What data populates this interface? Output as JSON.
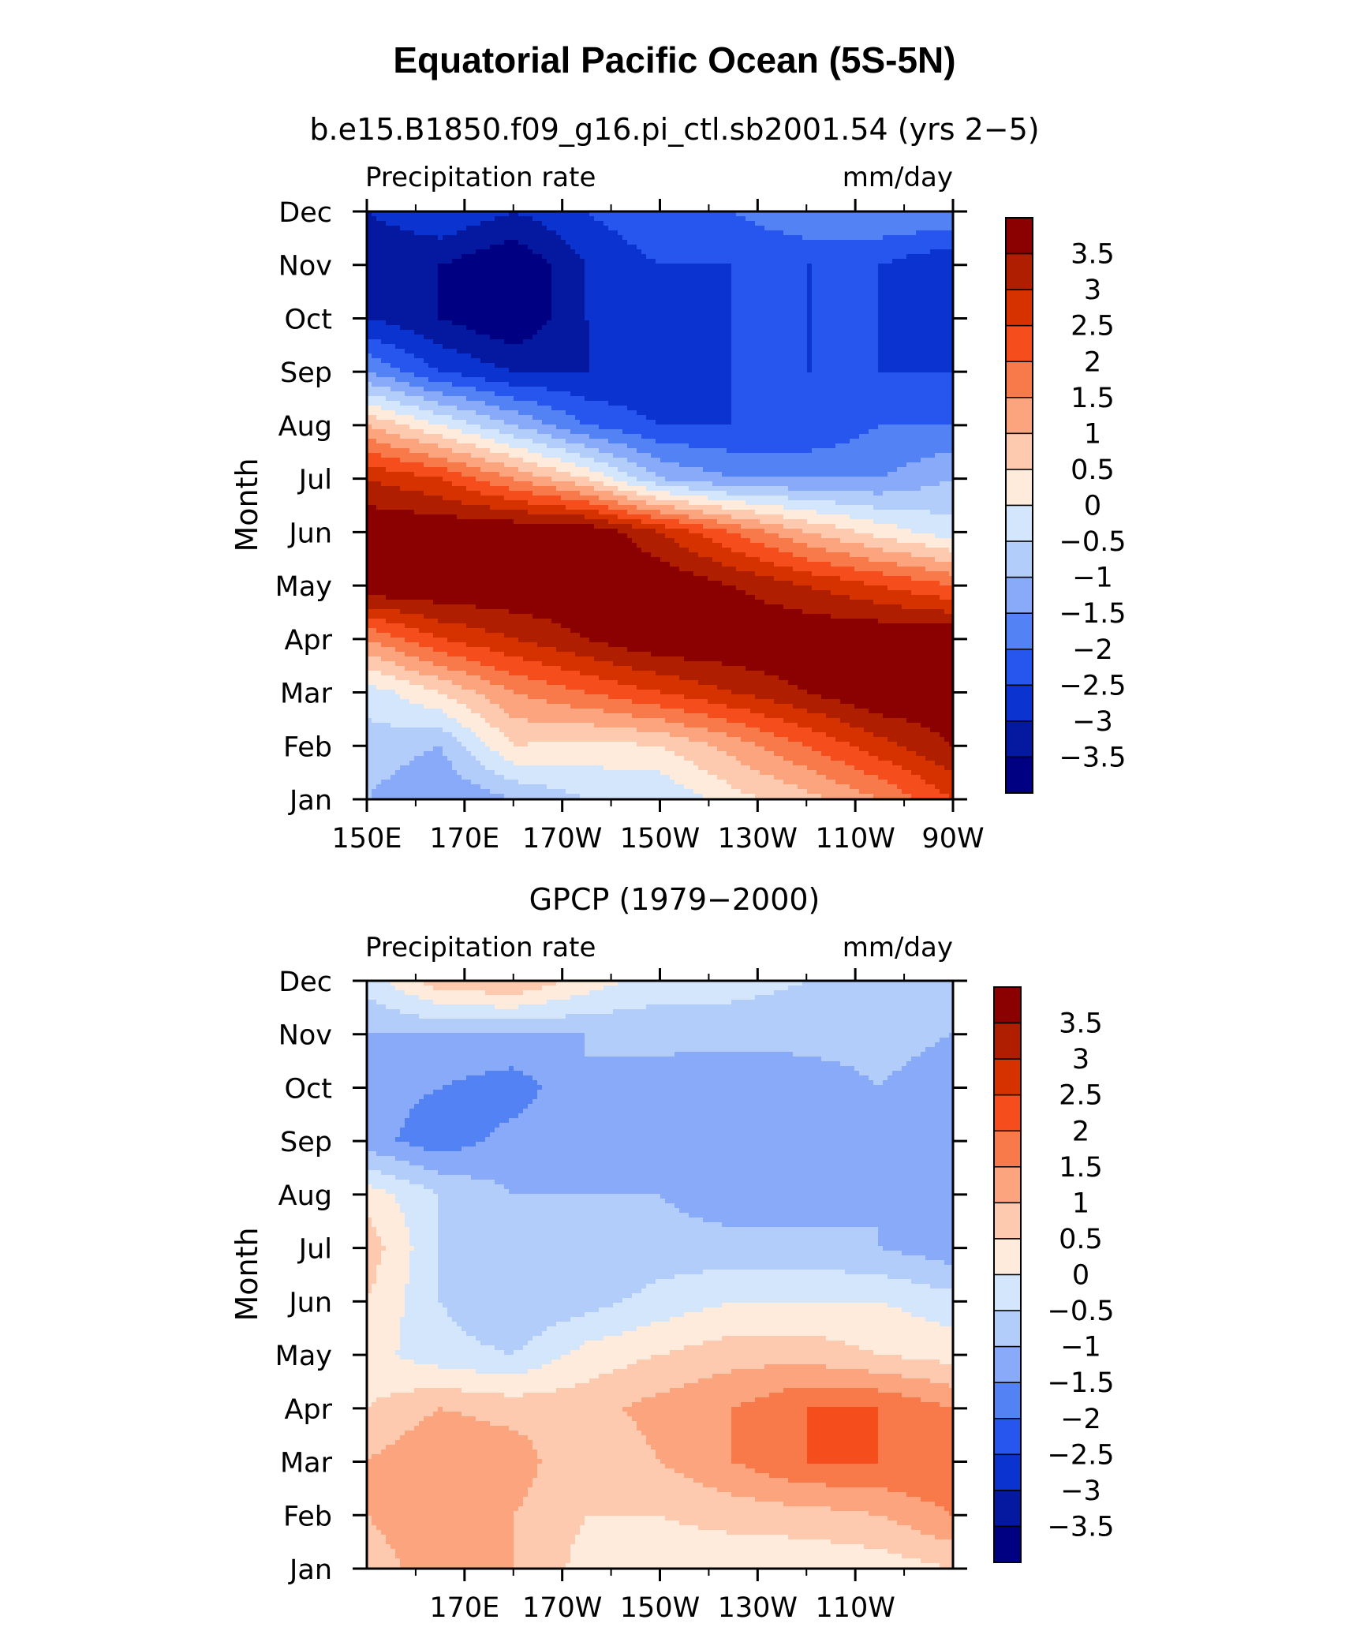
{
  "title": "Equatorial Pacific Ocean (5S-5N)",
  "chart_data": [
    {
      "type": "heatmap",
      "subtitle": "b.e15.B1850.f09_g16.pi_ctl.sb2001.54 (yrs 2−5)",
      "left_label": "Precipitation rate",
      "right_label": "mm/day",
      "ylabel": "Month",
      "months": [
        "Jan",
        "Feb",
        "Mar",
        "Apr",
        "May",
        "Jun",
        "Jul",
        "Aug",
        "Sep",
        "Oct",
        "Nov",
        "Dec"
      ],
      "xlim": [
        150,
        270
      ],
      "x_ticks": [
        {
          "lon": 150,
          "label": "150E"
        },
        {
          "lon": 170,
          "label": "170E"
        },
        {
          "lon": 190,
          "label": "170W"
        },
        {
          "lon": 210,
          "label": "150W"
        },
        {
          "lon": 230,
          "label": "130W"
        },
        {
          "lon": 250,
          "label": "110W"
        },
        {
          "lon": 270,
          "label": "90W"
        }
      ],
      "x_minor": [
        160,
        180,
        200,
        220,
        240,
        260
      ],
      "lons": [
        150,
        165,
        180,
        195,
        210,
        225,
        240,
        255,
        270
      ],
      "values": [
        [
          -1.0,
          -1.5,
          -1.0,
          -0.5,
          -0.5,
          0.3,
          0.8,
          1.5,
          2.5
        ],
        [
          -0.7,
          -1.0,
          0.5,
          0.3,
          0.5,
          1.2,
          2.0,
          2.8,
          3.5
        ],
        [
          -0.3,
          0.5,
          1.5,
          2.0,
          2.5,
          3.0,
          3.5,
          4.0,
          4.0
        ],
        [
          1.5,
          2.5,
          3.0,
          3.5,
          4.0,
          4.0,
          4.0,
          4.0,
          4.0
        ],
        [
          4.0,
          4.0,
          4.0,
          4.0,
          4.0,
          3.5,
          3.0,
          2.5,
          2.0
        ],
        [
          4.0,
          4.0,
          4.0,
          4.0,
          3.0,
          2.0,
          1.0,
          0.3,
          -0.3
        ],
        [
          3.0,
          2.5,
          1.5,
          0.5,
          -1.0,
          -1.5,
          -1.5,
          -1.5,
          -1.0
        ],
        [
          1.0,
          0.0,
          -1.0,
          -2.0,
          -2.5,
          -2.5,
          -2.5,
          -2.0,
          -2.0
        ],
        [
          -1.5,
          -2.5,
          -3.0,
          -3.0,
          -3.0,
          -2.5,
          -2.5,
          -2.5,
          -2.5
        ],
        [
          -3.0,
          -3.5,
          -4.0,
          -3.0,
          -3.0,
          -2.5,
          -2.5,
          -2.5,
          -3.0
        ],
        [
          -3.5,
          -3.5,
          -4.0,
          -3.0,
          -2.5,
          -2.5,
          -2.5,
          -2.5,
          -3.0
        ],
        [
          -3.0,
          -2.5,
          -3.0,
          -2.5,
          -2.0,
          -2.0,
          -1.5,
          -1.5,
          -1.5
        ]
      ]
    },
    {
      "type": "heatmap",
      "subtitle": "GPCP (1979−2000)",
      "left_label": "Precipitation rate",
      "right_label": "mm/day",
      "ylabel": "Month",
      "months": [
        "Jan",
        "Feb",
        "Mar",
        "Apr",
        "May",
        "Jun",
        "Jul",
        "Aug",
        "Sep",
        "Oct",
        "Nov",
        "Dec"
      ],
      "xlim": [
        150,
        270
      ],
      "x_ticks": [
        {
          "lon": 170,
          "label": "170E"
        },
        {
          "lon": 190,
          "label": "170W"
        },
        {
          "lon": 210,
          "label": "150W"
        },
        {
          "lon": 230,
          "label": "130W"
        },
        {
          "lon": 250,
          "label": "110W"
        }
      ],
      "x_minor": [
        160,
        180,
        200,
        220,
        240,
        260
      ],
      "lons": [
        150,
        165,
        180,
        195,
        210,
        225,
        240,
        255,
        270
      ],
      "values": [
        [
          0.8,
          1.2,
          1.0,
          0.3,
          0.2,
          0.1,
          0.1,
          0.2,
          0.5
        ],
        [
          1.0,
          1.3,
          1.0,
          0.5,
          0.5,
          0.7,
          0.8,
          1.0,
          1.5
        ],
        [
          1.0,
          1.5,
          1.3,
          0.5,
          1.0,
          1.5,
          2.0,
          2.0,
          2.0
        ],
        [
          0.5,
          1.0,
          0.8,
          0.8,
          1.2,
          1.5,
          2.0,
          2.0,
          1.5
        ],
        [
          0.2,
          -0.3,
          -0.5,
          0.2,
          0.5,
          0.8,
          0.8,
          0.5,
          0.3
        ],
        [
          0.5,
          -0.5,
          -1.0,
          -0.7,
          -0.3,
          0.0,
          0.0,
          0.0,
          -0.3
        ],
        [
          0.8,
          -0.5,
          -1.0,
          -1.0,
          -0.8,
          -0.8,
          -0.8,
          -1.0,
          -1.3
        ],
        [
          0.3,
          -0.5,
          -1.0,
          -1.0,
          -1.0,
          -1.3,
          -1.3,
          -1.0,
          -1.3
        ],
        [
          -1.3,
          -1.8,
          -1.3,
          -1.0,
          -1.3,
          -1.5,
          -1.3,
          -1.0,
          -1.3
        ],
        [
          -1.3,
          -1.5,
          -1.8,
          -1.0,
          -1.3,
          -1.5,
          -1.3,
          -1.0,
          -1.3
        ],
        [
          -1.0,
          -1.0,
          -1.0,
          -1.0,
          -0.8,
          -0.8,
          -0.8,
          -0.8,
          -1.0
        ],
        [
          -0.3,
          0.8,
          1.0,
          0.3,
          -0.3,
          -0.3,
          -0.5,
          -0.5,
          -0.5
        ]
      ]
    }
  ],
  "colorbar": {
    "labels": [
      "3.5",
      "3",
      "2.5",
      "2",
      "1.5",
      "1",
      "0.5",
      "0",
      "−0.5",
      "−1",
      "−1.5",
      "−2",
      "−2.5",
      "−3",
      "−3.5"
    ],
    "levels": [
      3.5,
      3,
      2.5,
      2,
      1.5,
      1,
      0.5,
      0,
      -0.5,
      -1,
      -1.5,
      -2,
      -2.5,
      -3,
      -3.5
    ],
    "colors_top_to_bottom": [
      "#8b0000",
      "#b01e00",
      "#d63200",
      "#f54e1c",
      "#f87a4a",
      "#fba47e",
      "#fdcab0",
      "#feebdc",
      "#d4e6fb",
      "#b3cdfb",
      "#88aaf8",
      "#5382f5",
      "#2756ef",
      "#0b33cf",
      "#0519a0",
      "#000082"
    ]
  }
}
